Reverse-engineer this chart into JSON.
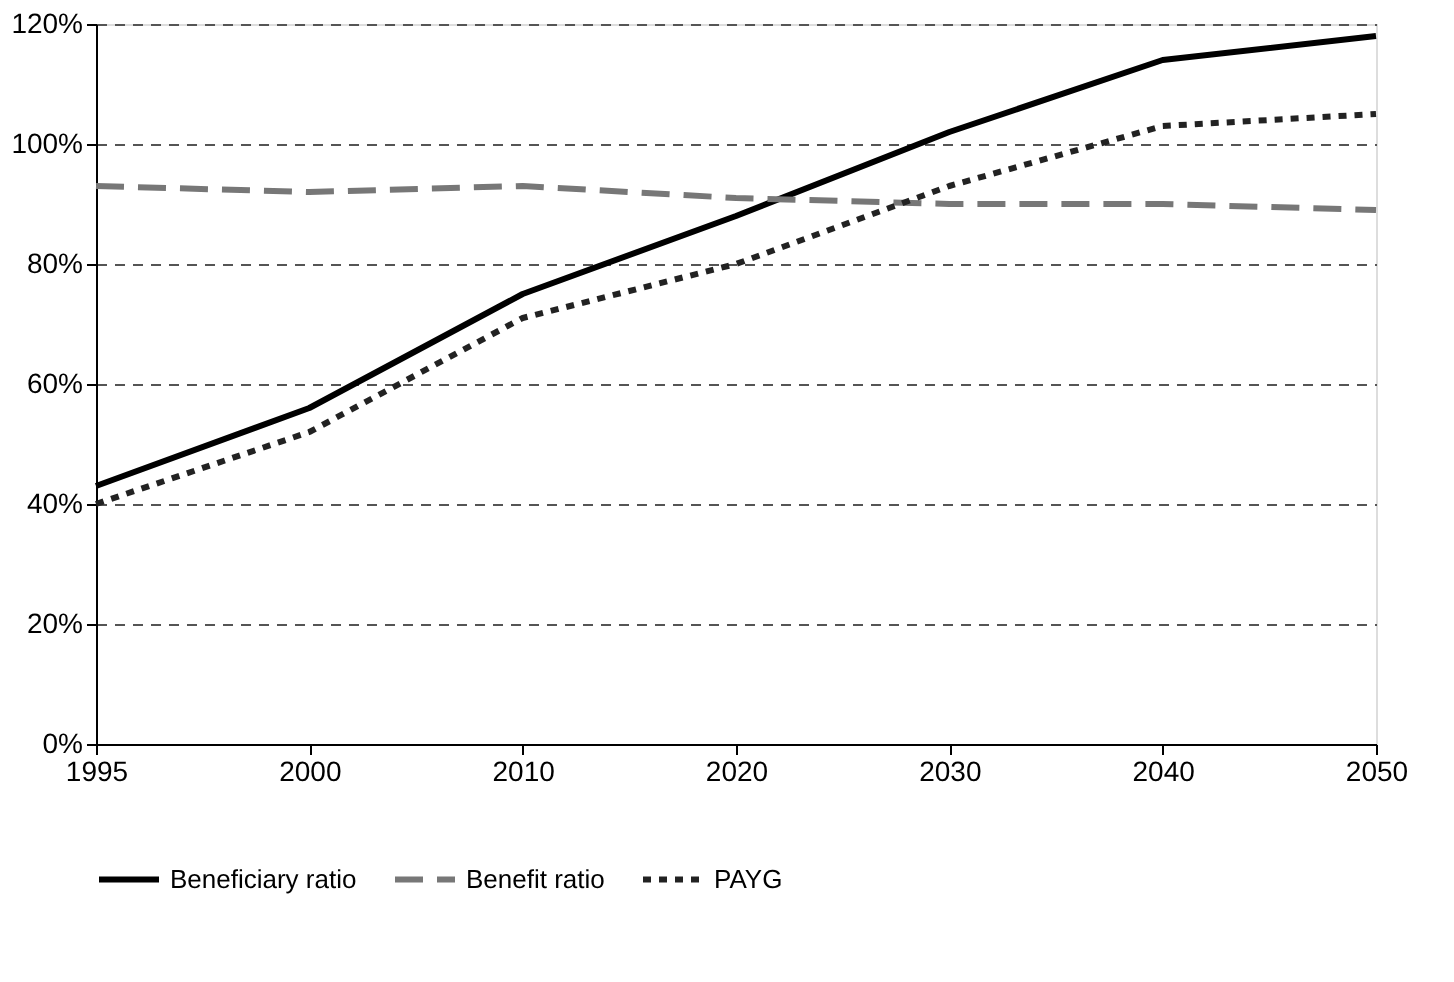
{
  "chart_data": {
    "type": "line",
    "categories": [
      "1995",
      "2000",
      "2010",
      "2020",
      "2030",
      "2040",
      "2050"
    ],
    "series": [
      {
        "name": "Beneficiary ratio",
        "color": "#000000",
        "line_style": "solid",
        "values": [
          43,
          56,
          75,
          88,
          102,
          114,
          118
        ]
      },
      {
        "name": "Benefit ratio",
        "color": "#777777",
        "line_style": "dashed",
        "values": [
          93,
          92,
          93,
          91,
          90,
          90,
          89
        ]
      },
      {
        "name": "PAYG",
        "color": "#222222",
        "line_style": "dotted",
        "values": [
          40,
          52,
          71,
          80,
          93,
          103,
          105
        ]
      }
    ],
    "ylim": [
      0,
      120
    ],
    "yticks": [
      {
        "value": 0,
        "label": "0%"
      },
      {
        "value": 20,
        "label": "20%"
      },
      {
        "value": 40,
        "label": "40%"
      },
      {
        "value": 60,
        "label": "60%"
      },
      {
        "value": 80,
        "label": "80%"
      },
      {
        "value": 100,
        "label": "100%"
      },
      {
        "value": 120,
        "label": "120%"
      }
    ],
    "grid": "y",
    "legend": "bottom",
    "marker": "none"
  }
}
